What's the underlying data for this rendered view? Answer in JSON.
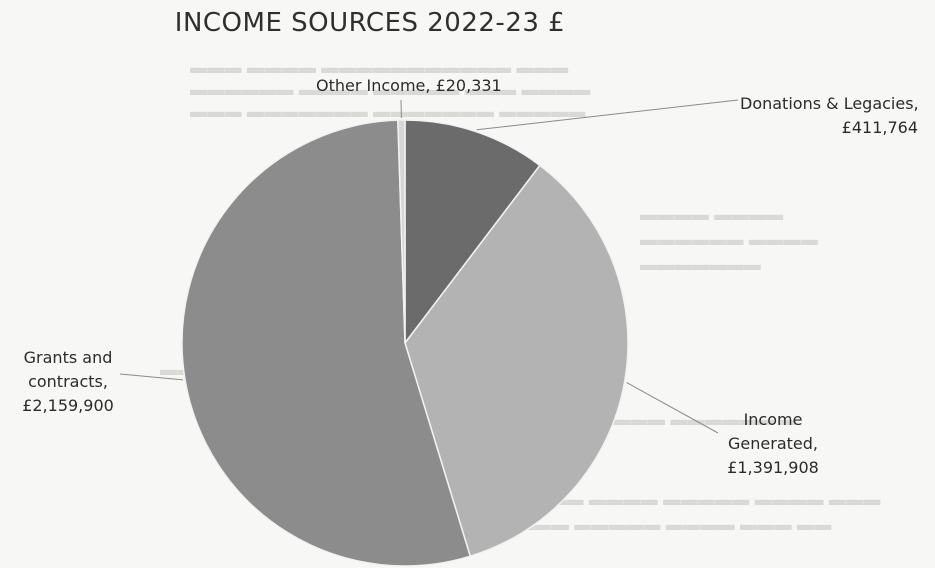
{
  "chart_data": {
    "type": "pie",
    "title": "INCOME SOURCES 2022-23 £",
    "slices": [
      {
        "name": "Donations & Legacies,",
        "value_label": "£411,764",
        "value": 411764,
        "color": "#6b6b6b"
      },
      {
        "name": "Income Generated,",
        "value_label": "£1,391,908",
        "value": 1391908,
        "color": "#b3b3b3"
      },
      {
        "name": "Grants and contracts,",
        "value_label": "£2,159,900",
        "value": 2159900,
        "color": "#8c8c8c"
      },
      {
        "name": "Other Income,",
        "value_label": "£20,331",
        "value": 20331,
        "color": "#d6d6d6"
      }
    ],
    "labels": {
      "donations": [
        "Donations & Legacies,",
        "£411,764"
      ],
      "income": [
        "Income",
        "Generated,",
        "£1,391,908"
      ],
      "grants": [
        "Grants and",
        "contracts,",
        "£2,159,900"
      ],
      "other": "Other Income, £20,331"
    }
  }
}
